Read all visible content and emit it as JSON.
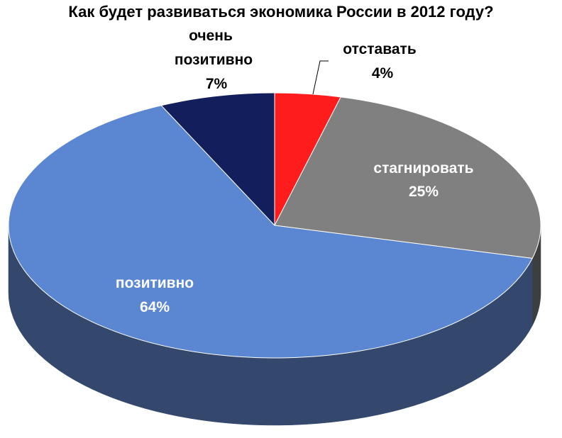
{
  "chart_data": {
    "type": "pie",
    "title": "Как будет развиваться экономика России в 2012 году?",
    "slices": [
      {
        "label": "отставать",
        "value": 4,
        "value_label": "4%",
        "color": "#ff1c1c",
        "side_color": "#a01010",
        "label_color": "#000000"
      },
      {
        "label": "стагнировать",
        "value": 25,
        "value_label": "25%",
        "color": "#808080",
        "side_color": "#3e3e3e",
        "label_color": "#ffffff"
      },
      {
        "label": "позитивно",
        "value": 64,
        "value_label": "64%",
        "color": "#5b87d2",
        "side_color": "#34476c",
        "label_color": "#ffffff"
      },
      {
        "label": "очень позитивно",
        "value": 7,
        "value_label": "7%",
        "color": "#131e5c",
        "side_color": "#0b1238",
        "label_color": "#000000"
      }
    ],
    "start_position": "12 o'clock",
    "direction": "clockwise",
    "style": "3d-tilted"
  }
}
